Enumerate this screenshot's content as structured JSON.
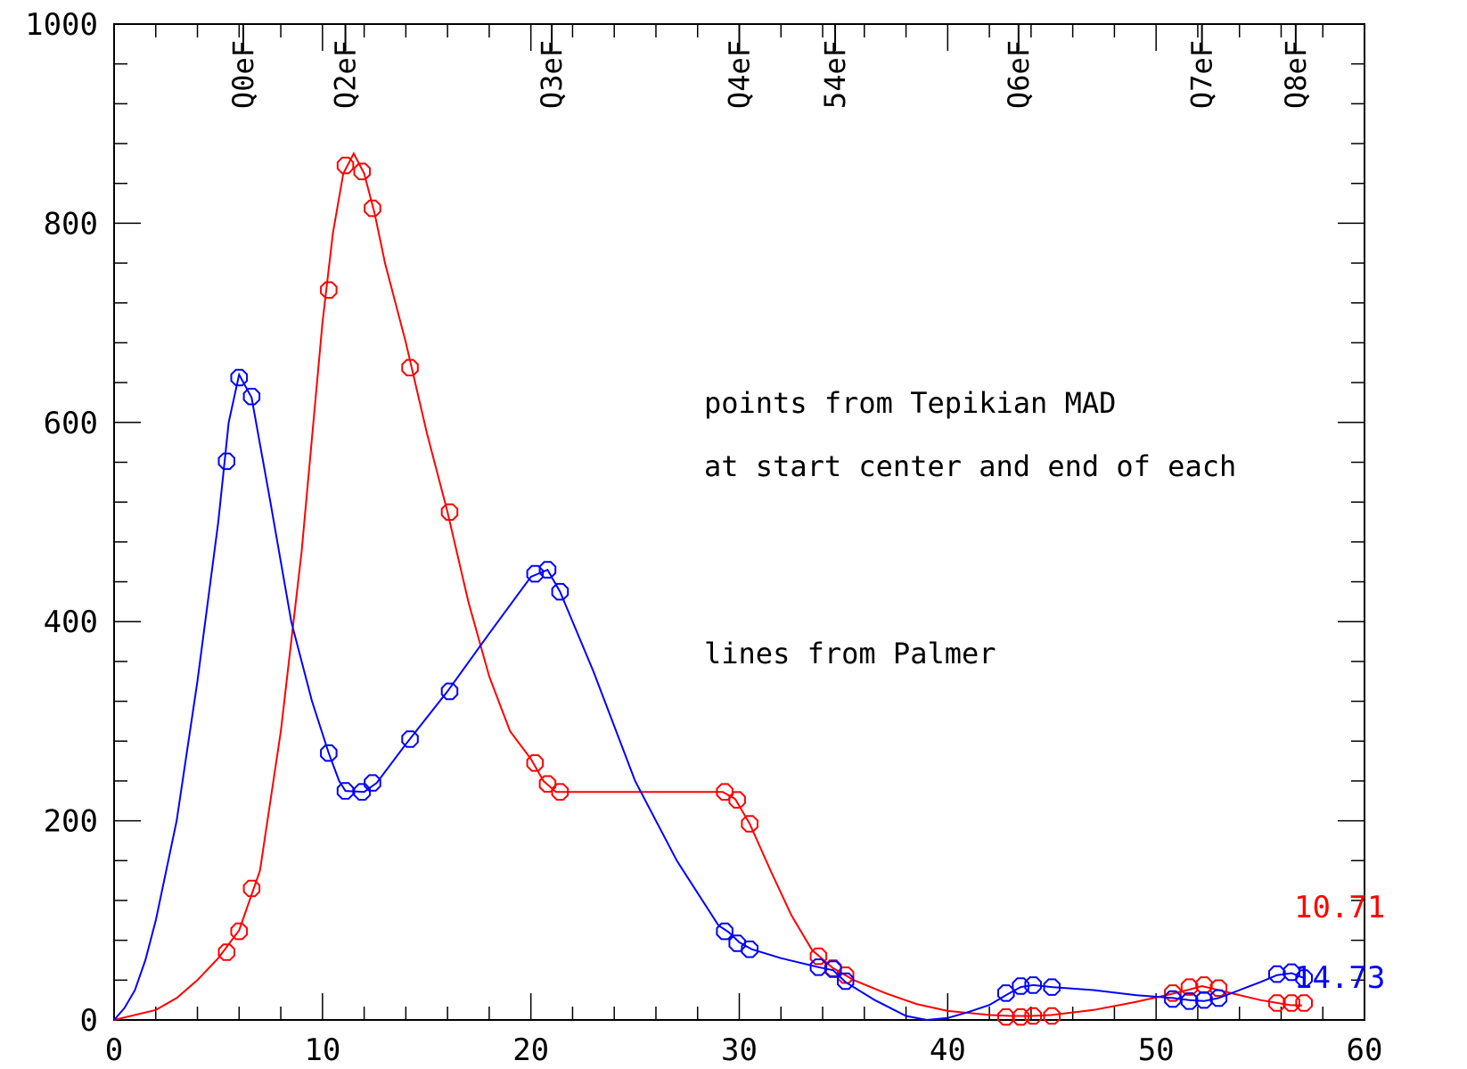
{
  "chart_data": {
    "type": "line",
    "xlim": [
      0,
      60
    ],
    "ylim": [
      0,
      1000
    ],
    "xticks": [
      0,
      10,
      20,
      30,
      40,
      50,
      60
    ],
    "yticks": [
      0,
      200,
      400,
      600,
      800,
      1000
    ],
    "xtick_labels": [
      "0",
      "10",
      "20",
      "30",
      "40",
      "50",
      "60"
    ],
    "ytick_labels": [
      "0",
      "200",
      "400",
      "600",
      "800",
      "1000"
    ],
    "grid": false,
    "magnet_markers": [
      {
        "label": "Q0eF",
        "x": 6.2
      },
      {
        "label": "Q2eF",
        "x": 11.1
      },
      {
        "label": "Q3eF",
        "x": 21.0
      },
      {
        "label": "Q4eF",
        "x": 30.0
      },
      {
        "label": "54eF",
        "x": 34.6
      },
      {
        "label": "Q6eF",
        "x": 43.4
      },
      {
        "label": "Q7eF",
        "x": 52.2
      },
      {
        "label": "Q8eF",
        "x": 56.7
      }
    ],
    "annotations": [
      "points from Tepikian MAD",
      "at start center and end of each",
      "lines from Palmer"
    ],
    "end_labels": {
      "red": "10.71",
      "blue": "14.73"
    },
    "series": [
      {
        "color": "#ff0000",
        "line": [
          [
            0,
            0
          ],
          [
            2,
            10
          ],
          [
            3,
            22
          ],
          [
            4,
            40
          ],
          [
            5,
            62
          ],
          [
            6,
            90
          ],
          [
            7,
            150
          ],
          [
            8,
            290
          ],
          [
            9,
            470
          ],
          [
            10,
            700
          ],
          [
            10.5,
            790
          ],
          [
            11,
            850
          ],
          [
            11.5,
            870
          ],
          [
            12,
            850
          ],
          [
            12.5,
            810
          ],
          [
            13,
            760
          ],
          [
            14,
            680
          ],
          [
            15,
            590
          ],
          [
            16,
            510
          ],
          [
            17,
            420
          ],
          [
            18,
            345
          ],
          [
            19,
            290
          ],
          [
            20,
            262
          ],
          [
            20.6,
            240
          ],
          [
            21.2,
            229
          ],
          [
            25,
            229
          ],
          [
            29.2,
            229
          ],
          [
            29.8,
            222
          ],
          [
            30.5,
            197
          ],
          [
            31.5,
            150
          ],
          [
            32.5,
            105
          ],
          [
            33.5,
            70
          ],
          [
            34.5,
            52
          ],
          [
            35.5,
            40
          ],
          [
            37,
            27
          ],
          [
            38.5,
            16
          ],
          [
            40,
            9
          ],
          [
            42,
            5
          ],
          [
            43,
            4
          ],
          [
            44,
            4
          ],
          [
            45,
            5
          ],
          [
            47,
            10
          ],
          [
            49,
            18
          ],
          [
            50.5,
            25
          ],
          [
            51.5,
            30
          ],
          [
            52.2,
            34
          ],
          [
            53,
            30
          ],
          [
            54,
            25
          ],
          [
            55,
            20
          ],
          [
            56.4,
            15
          ],
          [
            57,
            14.5
          ]
        ],
        "points": [
          [
            5.4,
            68
          ],
          [
            6,
            89
          ],
          [
            6.6,
            132
          ],
          [
            10.3,
            733
          ],
          [
            11.1,
            858
          ],
          [
            11.9,
            852
          ],
          [
            12.4,
            815
          ],
          [
            14.2,
            655
          ],
          [
            16.1,
            510
          ],
          [
            20.2,
            258
          ],
          [
            20.8,
            237
          ],
          [
            21.4,
            229
          ],
          [
            29.3,
            229
          ],
          [
            29.9,
            221
          ],
          [
            30.5,
            197
          ],
          [
            33.8,
            64
          ],
          [
            34.5,
            52
          ],
          [
            35.1,
            45
          ],
          [
            42.8,
            3
          ],
          [
            43.5,
            3
          ],
          [
            44.1,
            4
          ],
          [
            45,
            4
          ],
          [
            50.8,
            27
          ],
          [
            51.6,
            33
          ],
          [
            52.3,
            35
          ],
          [
            53,
            32
          ],
          [
            55.8,
            17
          ],
          [
            56.5,
            17
          ],
          [
            57.1,
            17
          ]
        ]
      },
      {
        "color": "#0000ff",
        "line": [
          [
            0,
            0
          ],
          [
            0.5,
            12
          ],
          [
            1,
            30
          ],
          [
            1.5,
            60
          ],
          [
            2,
            100
          ],
          [
            3,
            200
          ],
          [
            4,
            340
          ],
          [
            5,
            500
          ],
          [
            5.5,
            600
          ],
          [
            6,
            648
          ],
          [
            6.6,
            625
          ],
          [
            7.5,
            520
          ],
          [
            8.5,
            400
          ],
          [
            9.5,
            320
          ],
          [
            10.3,
            268
          ],
          [
            10.8,
            240
          ],
          [
            11.1,
            230
          ],
          [
            12,
            229
          ],
          [
            12.6,
            238
          ],
          [
            14,
            277
          ],
          [
            16,
            330
          ],
          [
            18,
            388
          ],
          [
            20,
            445
          ],
          [
            20.8,
            452
          ],
          [
            21.4,
            430
          ],
          [
            23,
            350
          ],
          [
            25,
            240
          ],
          [
            27,
            160
          ],
          [
            29,
            95
          ],
          [
            29.5,
            88
          ],
          [
            30,
            78
          ],
          [
            30.6,
            71
          ],
          [
            32,
            62
          ],
          [
            33.8,
            53
          ],
          [
            34.5,
            50
          ],
          [
            35.1,
            38
          ],
          [
            36.5,
            20
          ],
          [
            38,
            4
          ],
          [
            39,
            0
          ],
          [
            40,
            2
          ],
          [
            41,
            8
          ],
          [
            42,
            15
          ],
          [
            42.8,
            25
          ],
          [
            43.5,
            33
          ],
          [
            44.1,
            35
          ],
          [
            45,
            33
          ],
          [
            47,
            30
          ],
          [
            49,
            25
          ],
          [
            50.8,
            22
          ],
          [
            51.6,
            20
          ],
          [
            52.3,
            19
          ],
          [
            53,
            22
          ],
          [
            54,
            30
          ],
          [
            55,
            38
          ],
          [
            55.8,
            45
          ],
          [
            56.5,
            47
          ],
          [
            57.1,
            42
          ]
        ],
        "points": [
          [
            5.4,
            561
          ],
          [
            6,
            645
          ],
          [
            6.6,
            626
          ],
          [
            10.3,
            268
          ],
          [
            11.1,
            230
          ],
          [
            11.9,
            229
          ],
          [
            12.4,
            238
          ],
          [
            14.2,
            282
          ],
          [
            16.1,
            330
          ],
          [
            20.2,
            448
          ],
          [
            20.8,
            452
          ],
          [
            21.4,
            430
          ],
          [
            29.3,
            89
          ],
          [
            29.9,
            77
          ],
          [
            30.5,
            71
          ],
          [
            33.8,
            53
          ],
          [
            34.5,
            51
          ],
          [
            35.1,
            39
          ],
          [
            42.8,
            27
          ],
          [
            43.5,
            34
          ],
          [
            44.1,
            35
          ],
          [
            45,
            33
          ],
          [
            50.8,
            21
          ],
          [
            51.6,
            19
          ],
          [
            52.3,
            20
          ],
          [
            53,
            22
          ],
          [
            55.8,
            46
          ],
          [
            56.5,
            48
          ],
          [
            57.1,
            42
          ]
        ]
      }
    ]
  }
}
